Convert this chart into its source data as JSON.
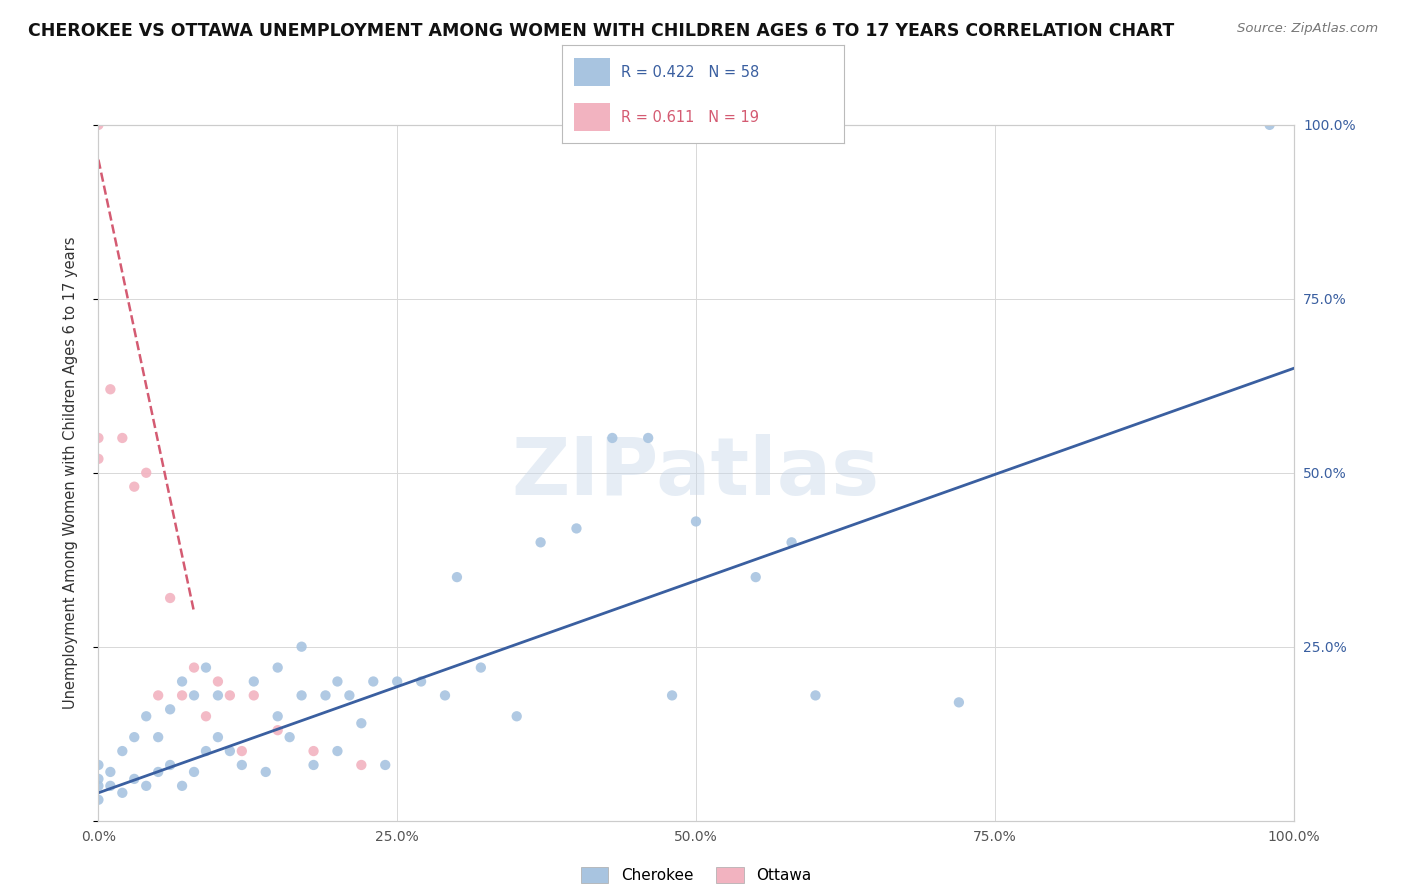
{
  "title": "CHEROKEE VS OTTAWA UNEMPLOYMENT AMONG WOMEN WITH CHILDREN AGES 6 TO 17 YEARS CORRELATION CHART",
  "source": "Source: ZipAtlas.com",
  "ylabel": "Unemployment Among Women with Children Ages 6 to 17 years",
  "xlim": [
    0.0,
    1.0
  ],
  "ylim": [
    0.0,
    1.0
  ],
  "xticks": [
    0.0,
    0.25,
    0.5,
    0.75,
    1.0
  ],
  "xticklabels": [
    "0.0%",
    "25.0%",
    "50.0%",
    "75.0%",
    "100.0%"
  ],
  "yticks": [
    0.0,
    0.25,
    0.5,
    0.75,
    1.0
  ],
  "yticklabels": [
    "",
    "25.0%",
    "50.0%",
    "75.0%",
    "100.0%"
  ],
  "cherokee_R": "0.422",
  "cherokee_N": "58",
  "ottawa_R": "0.611",
  "ottawa_N": "19",
  "cherokee_color": "#a8c4e0",
  "ottawa_color": "#f2b3c0",
  "cherokee_line_color": "#3a5fa0",
  "ottawa_line_color": "#d45b72",
  "watermark": "ZIPatlas",
  "legend_cherokee": "Cherokee",
  "legend_ottawa": "Ottawa",
  "cherokee_scatter_x": [
    0.0,
    0.0,
    0.0,
    0.0,
    0.01,
    0.01,
    0.02,
    0.02,
    0.03,
    0.03,
    0.04,
    0.04,
    0.05,
    0.05,
    0.06,
    0.06,
    0.07,
    0.07,
    0.08,
    0.08,
    0.09,
    0.09,
    0.1,
    0.1,
    0.11,
    0.12,
    0.13,
    0.14,
    0.15,
    0.15,
    0.16,
    0.17,
    0.17,
    0.18,
    0.19,
    0.2,
    0.2,
    0.21,
    0.22,
    0.23,
    0.24,
    0.25,
    0.27,
    0.29,
    0.3,
    0.32,
    0.35,
    0.37,
    0.4,
    0.43,
    0.46,
    0.48,
    0.5,
    0.55,
    0.58,
    0.6,
    0.72,
    0.98
  ],
  "cherokee_scatter_y": [
    0.03,
    0.05,
    0.06,
    0.08,
    0.05,
    0.07,
    0.04,
    0.1,
    0.06,
    0.12,
    0.05,
    0.15,
    0.07,
    0.12,
    0.08,
    0.16,
    0.05,
    0.2,
    0.07,
    0.18,
    0.1,
    0.22,
    0.12,
    0.18,
    0.1,
    0.08,
    0.2,
    0.07,
    0.15,
    0.22,
    0.12,
    0.18,
    0.25,
    0.08,
    0.18,
    0.1,
    0.2,
    0.18,
    0.14,
    0.2,
    0.08,
    0.2,
    0.2,
    0.18,
    0.35,
    0.22,
    0.15,
    0.4,
    0.42,
    0.55,
    0.55,
    0.18,
    0.43,
    0.35,
    0.4,
    0.18,
    0.17,
    1.0
  ],
  "ottawa_scatter_x": [
    0.0,
    0.0,
    0.0,
    0.01,
    0.02,
    0.03,
    0.04,
    0.05,
    0.06,
    0.07,
    0.08,
    0.09,
    0.1,
    0.11,
    0.12,
    0.13,
    0.15,
    0.18,
    0.22
  ],
  "ottawa_scatter_y": [
    0.52,
    0.55,
    1.0,
    0.62,
    0.55,
    0.48,
    0.5,
    0.18,
    0.32,
    0.18,
    0.22,
    0.15,
    0.2,
    0.18,
    0.1,
    0.18,
    0.13,
    0.1,
    0.08
  ],
  "cherokee_line_x0": 0.0,
  "cherokee_line_y0": 0.04,
  "cherokee_line_x1": 1.0,
  "cherokee_line_y1": 0.65,
  "ottawa_line_x0": 0.0,
  "ottawa_line_y0": 0.95,
  "ottawa_line_x1": 0.08,
  "ottawa_line_y1": 0.3
}
